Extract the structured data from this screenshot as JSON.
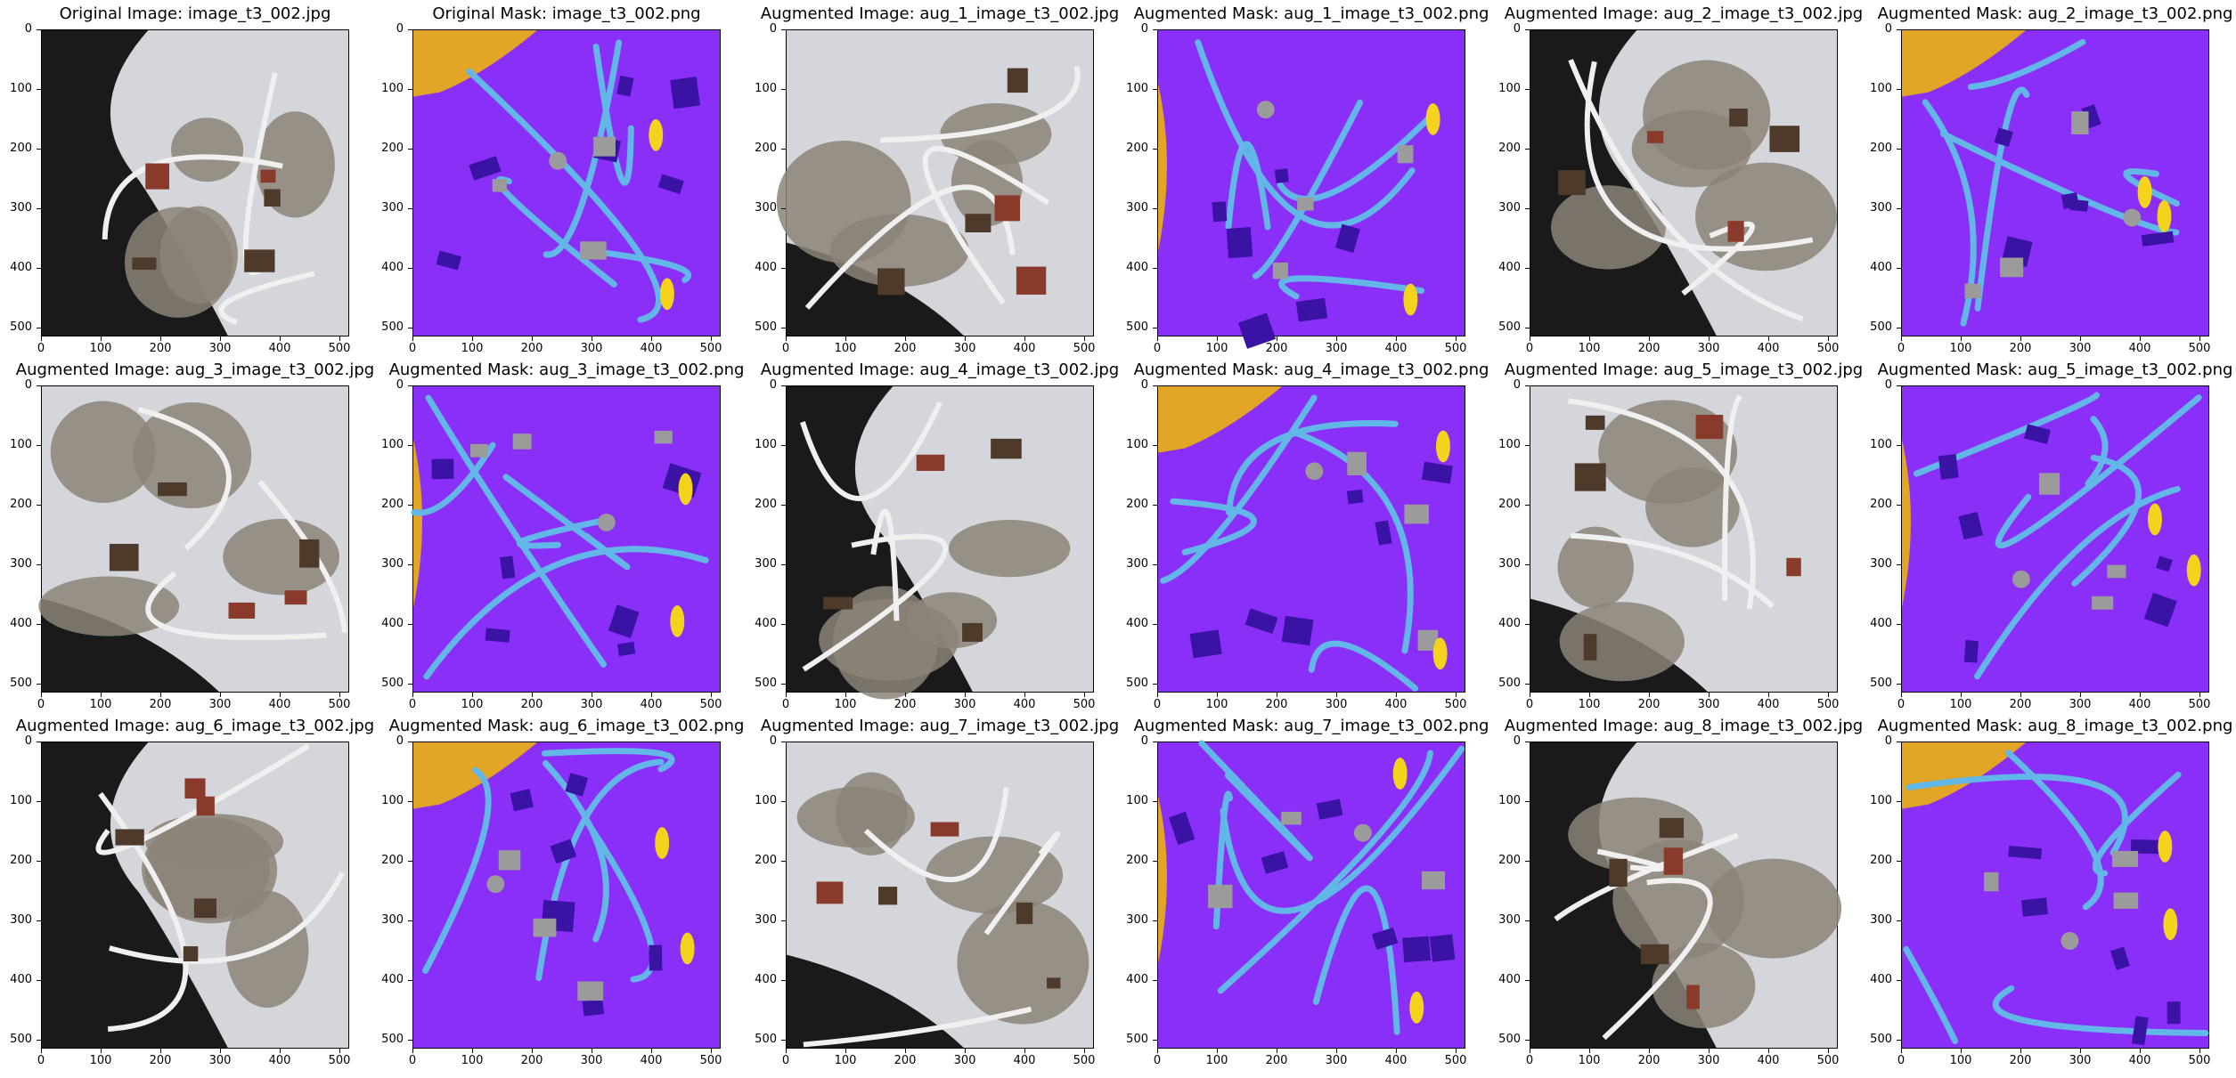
{
  "figure": {
    "colors": {
      "building": "#3a12a4",
      "land": "#8a2ff7",
      "road": "#62b7e8",
      "vegetation": "#f5d21b",
      "water": "#e2a526",
      "unlabeled": "#9b9b9b",
      "satellite_dark": "#1a1a1a",
      "satellite_mid": "#8c8478",
      "satellite_light": "#d4d6db"
    },
    "axis_ticks": {
      "y": [
        "0",
        "100",
        "200",
        "300",
        "400",
        "500"
      ],
      "x": [
        "0",
        "100",
        "200",
        "300",
        "400",
        "500"
      ]
    },
    "panels": [
      {
        "title": "Original Image: image_t3_002.jpg",
        "kind": "image"
      },
      {
        "title": "Original Mask: image_t3_002.png",
        "kind": "mask"
      },
      {
        "title": "Augmented Image: aug_1_image_t3_002.jpg",
        "kind": "image"
      },
      {
        "title": "Augmented Mask: aug_1_image_t3_002.png",
        "kind": "mask"
      },
      {
        "title": "Augmented Image: aug_2_image_t3_002.jpg",
        "kind": "image"
      },
      {
        "title": "Augmented Mask: aug_2_image_t3_002.png",
        "kind": "mask"
      },
      {
        "title": "Augmented Image: aug_3_image_t3_002.jpg",
        "kind": "image"
      },
      {
        "title": "Augmented Mask: aug_3_image_t3_002.png",
        "kind": "mask"
      },
      {
        "title": "Augmented Image: aug_4_image_t3_002.jpg",
        "kind": "image"
      },
      {
        "title": "Augmented Mask: aug_4_image_t3_002.png",
        "kind": "mask"
      },
      {
        "title": "Augmented Image: aug_5_image_t3_002.jpg",
        "kind": "image"
      },
      {
        "title": "Augmented Mask: aug_5_image_t3_002.png",
        "kind": "mask"
      },
      {
        "title": "Augmented Image: aug_6_image_t3_002.jpg",
        "kind": "image"
      },
      {
        "title": "Augmented Mask: aug_6_image_t3_002.png",
        "kind": "mask"
      },
      {
        "title": "Augmented Image: aug_7_image_t3_002.jpg",
        "kind": "image"
      },
      {
        "title": "Augmented Mask: aug_7_image_t3_002.png",
        "kind": "mask"
      },
      {
        "title": "Augmented Image: aug_8_image_t3_002.jpg",
        "kind": "image"
      },
      {
        "title": "Augmented Mask: aug_8_image_t3_002.png",
        "kind": "mask"
      }
    ]
  }
}
